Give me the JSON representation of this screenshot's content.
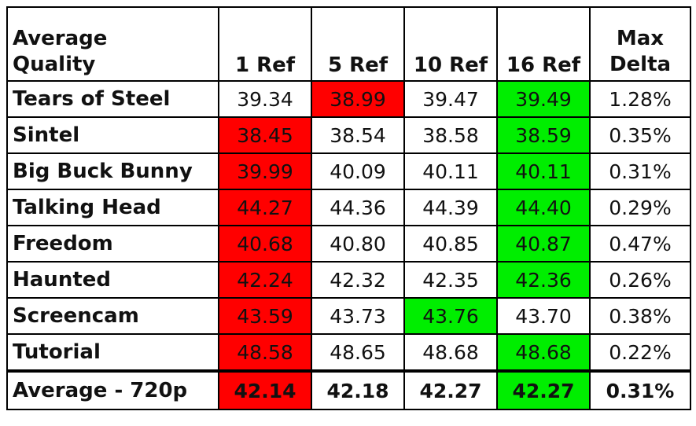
{
  "table": {
    "header": [
      "Average Quality",
      "1 Ref",
      "5 Ref",
      "10 Ref",
      "16 Ref",
      "Max Delta"
    ],
    "rows": [
      [
        "Tears of Steel",
        "39.34",
        {
          "text": "38.99",
          "fill": "#ff0000"
        },
        "39.47",
        {
          "text": "39.49",
          "fill": "#00ee00"
        },
        "1.28%"
      ],
      [
        "Sintel",
        {
          "text": "38.45",
          "fill": "#ff0000"
        },
        "38.54",
        "38.58",
        {
          "text": "38.59",
          "fill": "#00ee00"
        },
        "0.35%"
      ],
      [
        "Big Buck Bunny",
        {
          "text": "39.99",
          "fill": "#ff0000"
        },
        "40.09",
        "40.11",
        {
          "text": "40.11",
          "fill": "#00ee00"
        },
        "0.31%"
      ],
      [
        "Talking Head",
        {
          "text": "44.27",
          "fill": "#ff0000"
        },
        "44.36",
        "44.39",
        {
          "text": "44.40",
          "fill": "#00ee00"
        },
        "0.29%"
      ],
      [
        "Freedom",
        {
          "text": "40.68",
          "fill": "#ff0000"
        },
        "40.80",
        "40.85",
        {
          "text": "40.87",
          "fill": "#00ee00"
        },
        "0.47%"
      ],
      [
        "Haunted",
        {
          "text": "42.24",
          "fill": "#ff0000"
        },
        "42.32",
        "42.35",
        {
          "text": "42.36",
          "fill": "#00ee00"
        },
        "0.26%"
      ],
      [
        "Screencam",
        {
          "text": "43.59",
          "fill": "#ff0000"
        },
        "43.73",
        {
          "text": "43.76",
          "fill": "#00ee00"
        },
        "43.70",
        "0.38%"
      ],
      [
        "Tutorial",
        {
          "text": "48.58",
          "fill": "#ff0000"
        },
        "48.65",
        "48.68",
        {
          "text": "48.68",
          "fill": "#00ee00"
        },
        "0.22%"
      ]
    ],
    "footer": [
      "Average - 720p",
      {
        "text": "42.14",
        "fill": "#ff0000"
      },
      "42.18",
      "42.27",
      {
        "text": "42.27",
        "fill": "#00ee00"
      },
      "0.31%"
    ]
  }
}
